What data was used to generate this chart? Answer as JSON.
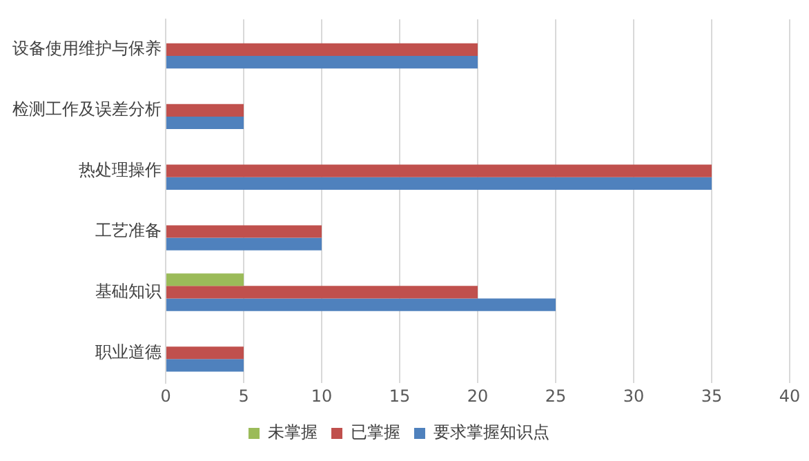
{
  "chart_data": {
    "type": "bar",
    "orientation": "horizontal",
    "categories": [
      "设备使用维护与保养",
      "检测工作及误差分析",
      "热处理操作",
      "工艺准备",
      "基础知识",
      "职业道德"
    ],
    "series": [
      {
        "name": "未掌握",
        "color": "#9bbb59",
        "values": [
          null,
          null,
          null,
          null,
          5,
          null
        ]
      },
      {
        "name": "已掌握",
        "color": "#c0504d",
        "values": [
          20,
          5,
          35,
          10,
          20,
          5
        ]
      },
      {
        "name": "要求掌握知识点",
        "color": "#4f81bd",
        "values": [
          20,
          5,
          35,
          10,
          25,
          5
        ]
      }
    ],
    "xlim": [
      0,
      40
    ],
    "xticks": [
      0,
      5,
      10,
      15,
      20,
      25,
      30,
      35,
      40
    ],
    "grid": "x",
    "legend": "bottom"
  }
}
